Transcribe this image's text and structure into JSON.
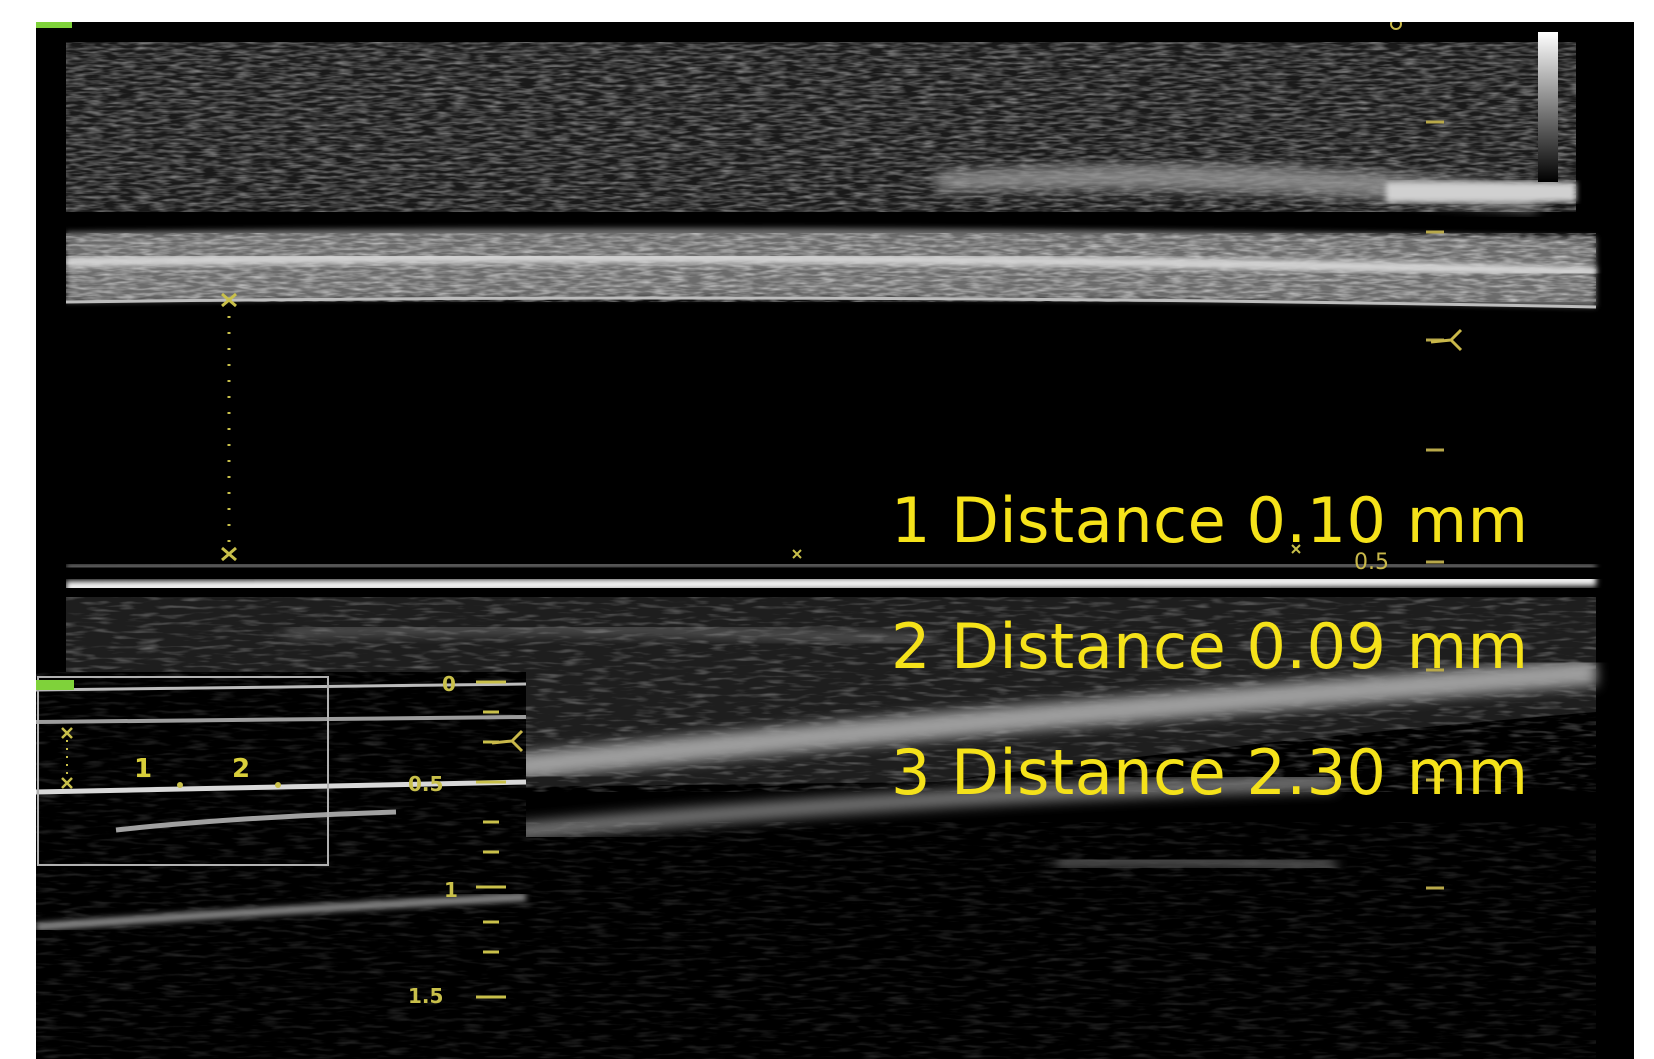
{
  "measurements": [
    {
      "text": "1 Distance 0.10 mm"
    },
    {
      "text": "2 Distance 0.09 mm"
    },
    {
      "text": "3 Distance 2.30 mm"
    }
  ],
  "depth_scale": {
    "main": {
      "mid": "0.5"
    },
    "inset": {
      "top": "0",
      "mid": "0.5",
      "bottom": "1",
      "lower": "1.5"
    }
  },
  "inset_markers": [
    "1",
    "2"
  ],
  "colors": {
    "measurement_text": "#f5e21a",
    "caliper": "#c9c04a",
    "background": "#000000",
    "indicator": "#7fd23a"
  }
}
